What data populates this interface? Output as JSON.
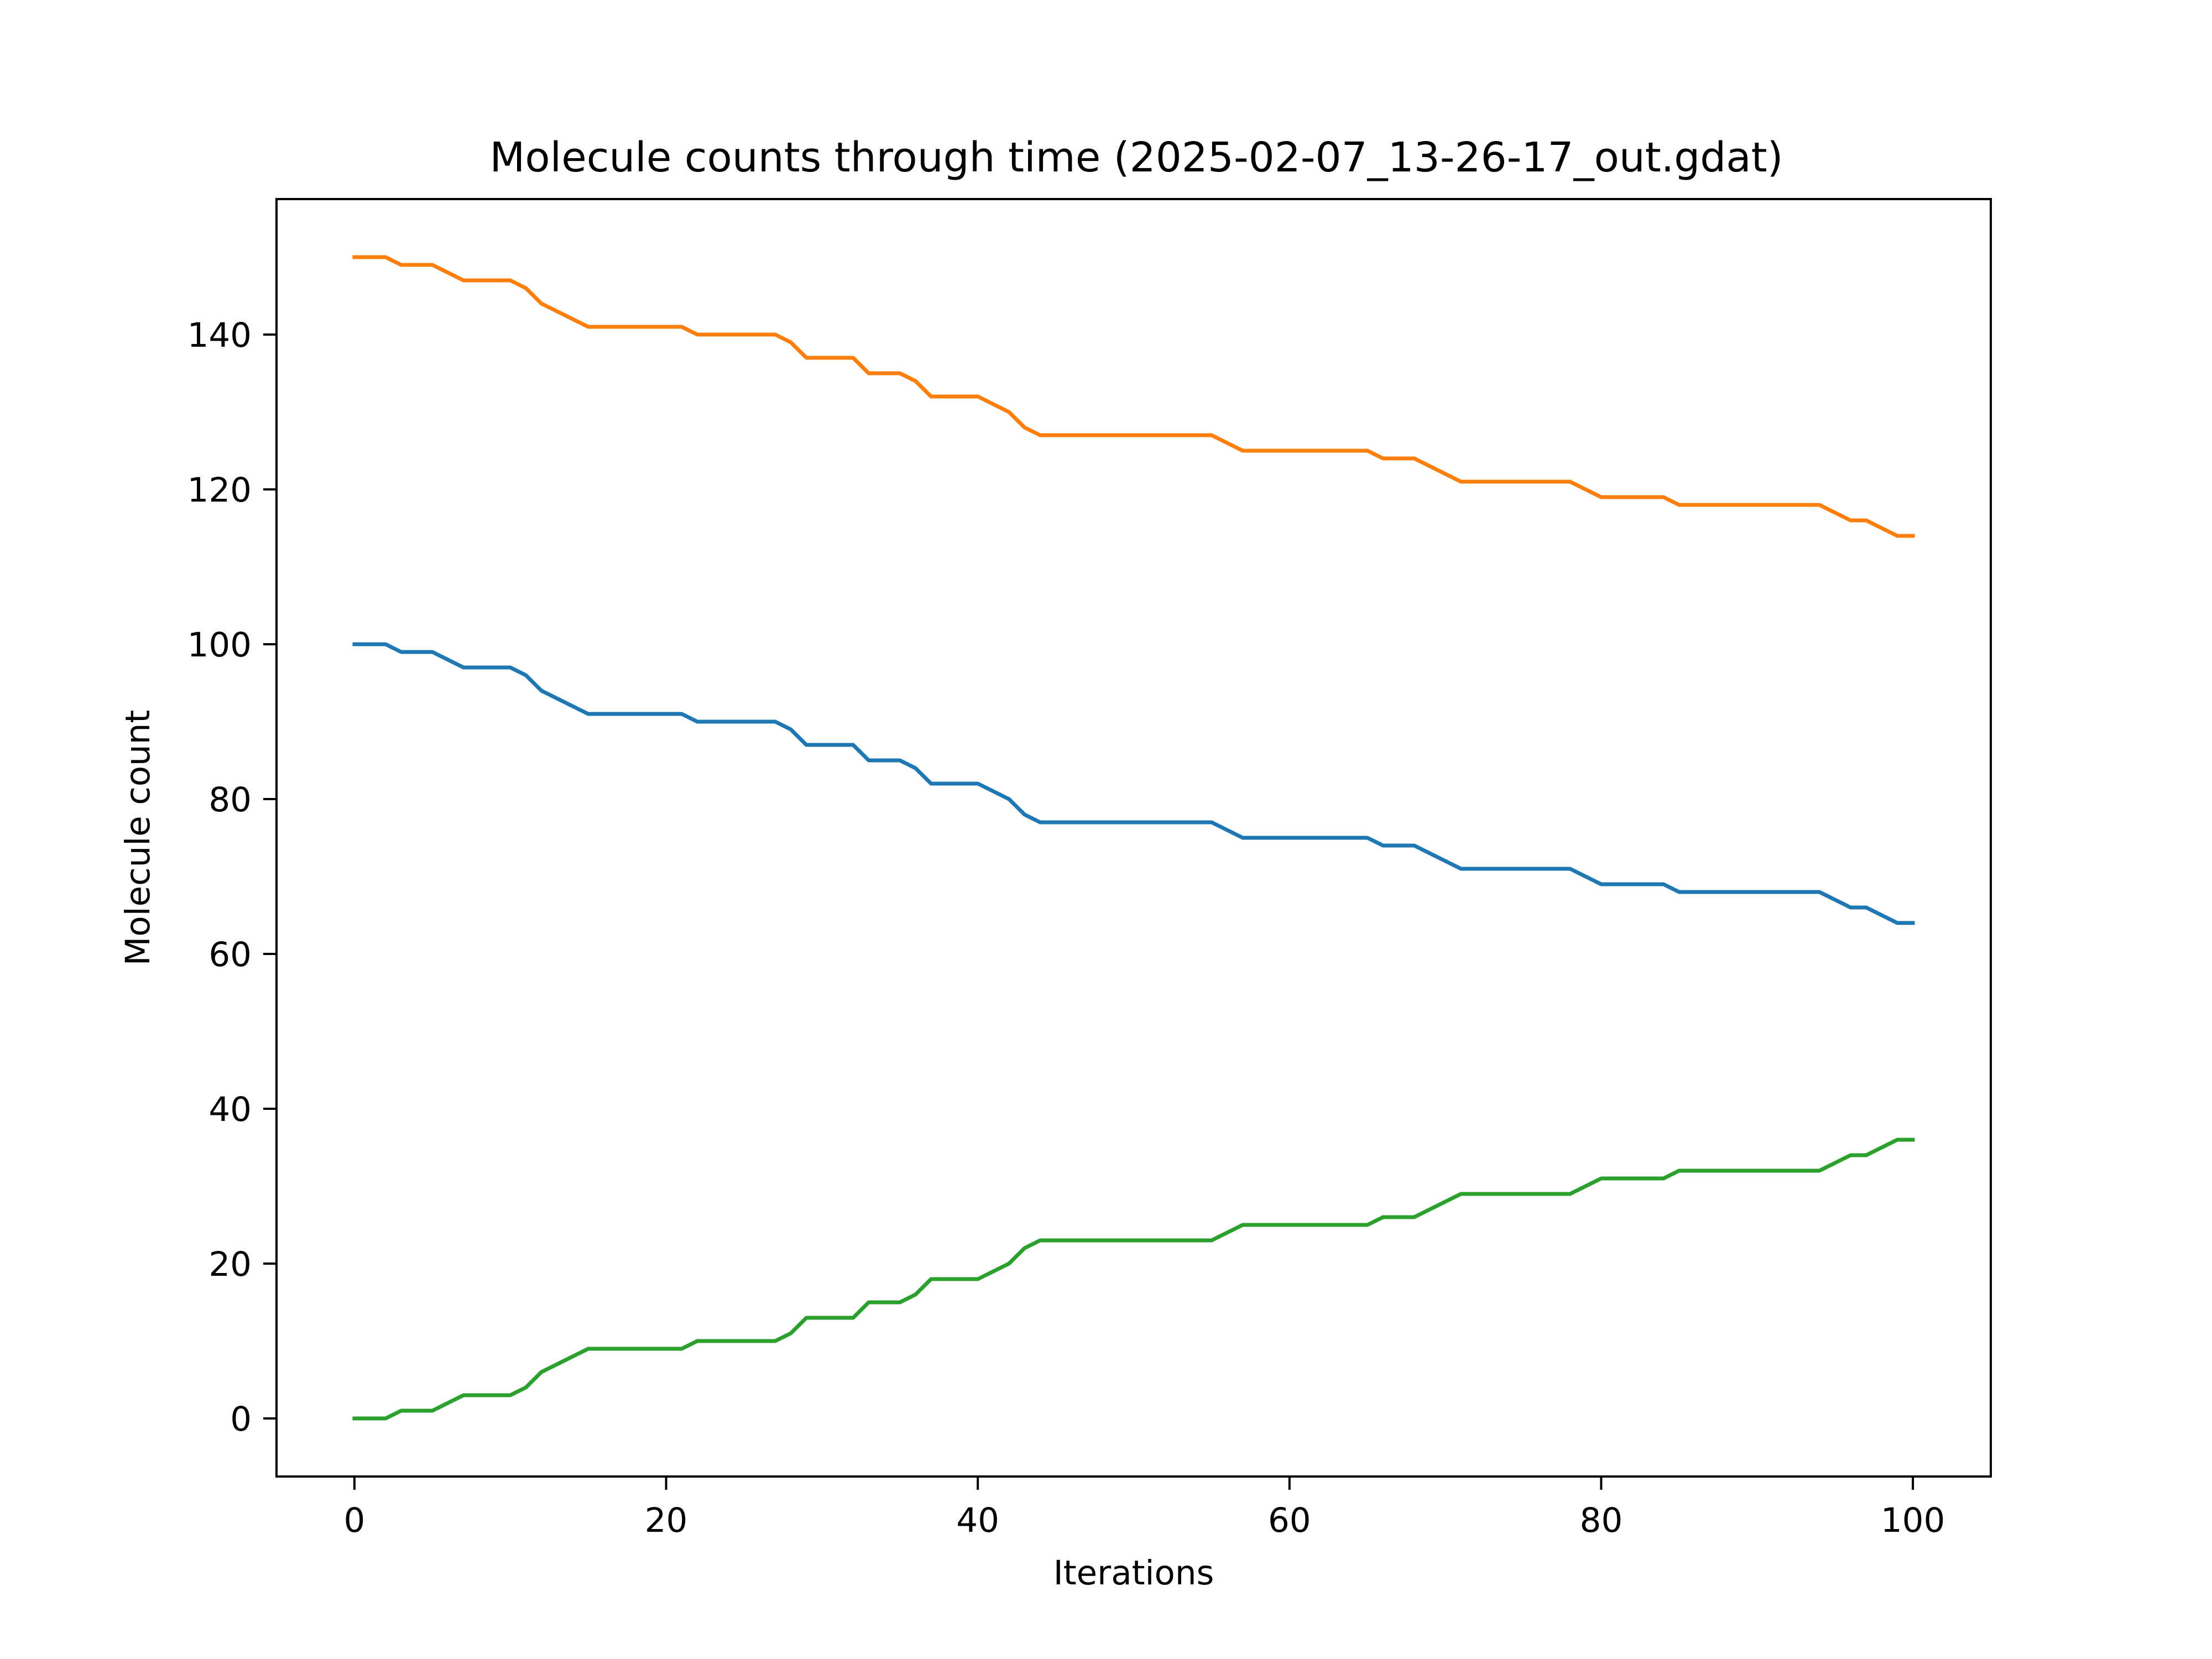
{
  "chart_data": {
    "type": "line",
    "title": "Molecule counts through time (2025-02-07_13-26-17_out.gdat)",
    "xlabel": "Iterations",
    "ylabel": "Molecule count",
    "xlim": [
      -5,
      105
    ],
    "ylim": [
      -7.5,
      157.5
    ],
    "xticks": [
      0,
      20,
      40,
      60,
      80,
      100
    ],
    "yticks": [
      0,
      20,
      40,
      60,
      80,
      100,
      120,
      140
    ],
    "grid": false,
    "legend": "none",
    "x": [
      0,
      1,
      2,
      3,
      4,
      5,
      6,
      7,
      8,
      9,
      10,
      11,
      12,
      13,
      14,
      15,
      16,
      17,
      18,
      19,
      20,
      21,
      22,
      23,
      24,
      25,
      26,
      27,
      28,
      29,
      30,
      31,
      32,
      33,
      34,
      35,
      36,
      37,
      38,
      39,
      40,
      41,
      42,
      43,
      44,
      45,
      46,
      47,
      48,
      49,
      50,
      51,
      52,
      53,
      54,
      55,
      56,
      57,
      58,
      59,
      60,
      61,
      62,
      63,
      64,
      65,
      66,
      67,
      68,
      69,
      70,
      71,
      72,
      73,
      74,
      75,
      76,
      77,
      78,
      79,
      80,
      81,
      82,
      83,
      84,
      85,
      86,
      87,
      88,
      89,
      90,
      91,
      92,
      93,
      94,
      95,
      96,
      97,
      98,
      99,
      100
    ],
    "series": [
      {
        "color": "#1f77b4",
        "values": [
          100,
          100,
          100,
          99,
          99,
          99,
          98,
          97,
          97,
          97,
          97,
          96,
          94,
          93,
          92,
          91,
          91,
          91,
          91,
          91,
          91,
          91,
          90,
          90,
          90,
          90,
          90,
          90,
          89,
          87,
          87,
          87,
          87,
          85,
          85,
          85,
          84,
          82,
          82,
          82,
          82,
          81,
          80,
          78,
          77,
          77,
          77,
          77,
          77,
          77,
          77,
          77,
          77,
          77,
          77,
          77,
          76,
          75,
          75,
          75,
          75,
          75,
          75,
          75,
          75,
          75,
          74,
          74,
          74,
          73,
          72,
          71,
          71,
          71,
          71,
          71,
          71,
          71,
          71,
          70,
          69,
          69,
          69,
          69,
          69,
          68,
          68,
          68,
          68,
          68,
          68,
          68,
          68,
          68,
          68,
          67,
          66,
          66,
          65,
          64,
          64
        ]
      },
      {
        "color": "#ff7f0e",
        "values": [
          150,
          150,
          150,
          149,
          149,
          149,
          148,
          147,
          147,
          147,
          147,
          146,
          144,
          143,
          142,
          141,
          141,
          141,
          141,
          141,
          141,
          141,
          140,
          140,
          140,
          140,
          140,
          140,
          139,
          137,
          137,
          137,
          137,
          135,
          135,
          135,
          134,
          132,
          132,
          132,
          132,
          131,
          130,
          128,
          127,
          127,
          127,
          127,
          127,
          127,
          127,
          127,
          127,
          127,
          127,
          127,
          126,
          125,
          125,
          125,
          125,
          125,
          125,
          125,
          125,
          125,
          124,
          124,
          124,
          123,
          122,
          121,
          121,
          121,
          121,
          121,
          121,
          121,
          121,
          120,
          119,
          119,
          119,
          119,
          119,
          118,
          118,
          118,
          118,
          118,
          118,
          118,
          118,
          118,
          118,
          117,
          116,
          116,
          115,
          114,
          114
        ]
      },
      {
        "color": "#2ca02c",
        "values": [
          0,
          0,
          0,
          1,
          1,
          1,
          2,
          3,
          3,
          3,
          3,
          4,
          6,
          7,
          8,
          9,
          9,
          9,
          9,
          9,
          9,
          9,
          10,
          10,
          10,
          10,
          10,
          10,
          11,
          13,
          13,
          13,
          13,
          15,
          15,
          15,
          16,
          18,
          18,
          18,
          18,
          19,
          20,
          22,
          23,
          23,
          23,
          23,
          23,
          23,
          23,
          23,
          23,
          23,
          23,
          23,
          24,
          25,
          25,
          25,
          25,
          25,
          25,
          25,
          25,
          25,
          26,
          26,
          26,
          27,
          28,
          29,
          29,
          29,
          29,
          29,
          29,
          29,
          29,
          30,
          31,
          31,
          31,
          31,
          31,
          32,
          32,
          32,
          32,
          32,
          32,
          32,
          32,
          32,
          32,
          33,
          34,
          34,
          35,
          36,
          36
        ]
      }
    ]
  }
}
